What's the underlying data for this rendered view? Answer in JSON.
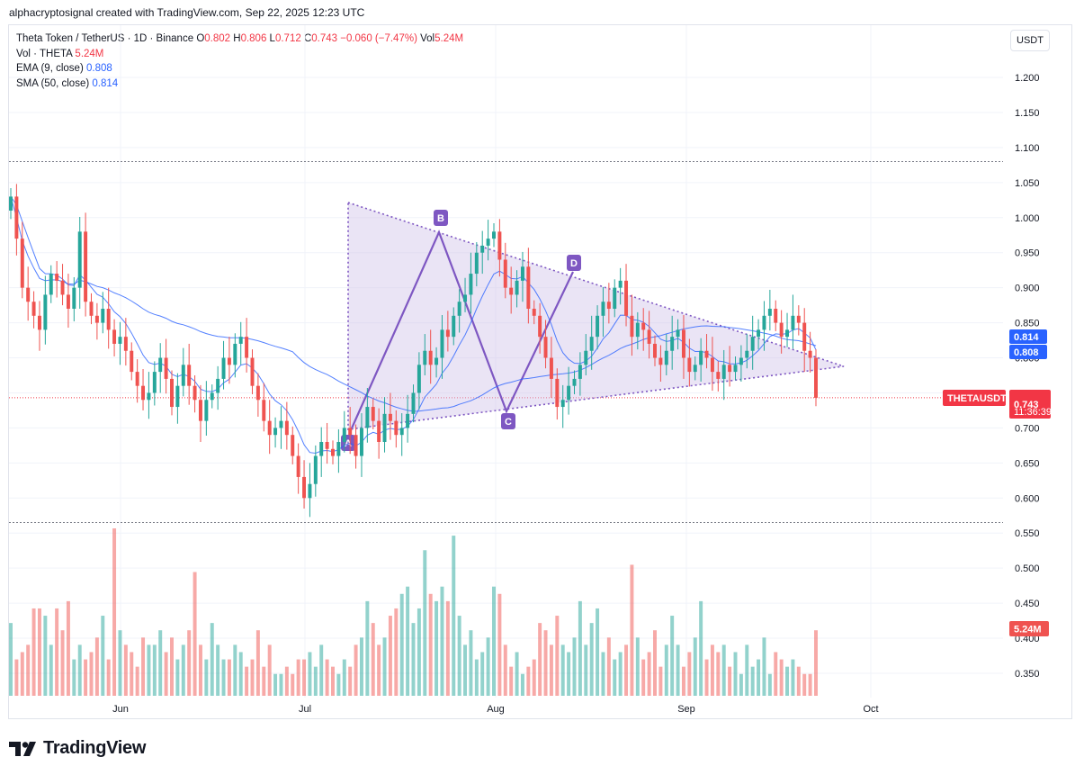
{
  "caption": "alphacryptosignal created with TradingView.com, Sep 22, 2025 12:23 UTC",
  "legend": {
    "symbol": "Theta Token / TetherUS · 1D · Binance",
    "o_label": "O",
    "o": "0.802",
    "h_label": "H",
    "h": "0.806",
    "l_label": "L",
    "l": "0.712",
    "c_label": "C",
    "c": "0.743",
    "change": "−0.060 (−7.47%)",
    "vol_label": "Vol",
    "vol": "5.24M",
    "vol_row_label": "Vol · THETA",
    "vol_row_value": "5.24M",
    "ema_label": "EMA (9, close)",
    "ema_value": "0.808",
    "sma_label": "SMA (50, close)",
    "sma_value": "0.814"
  },
  "currency": "USDT",
  "price_axis": [
    "1.200",
    "1.150",
    "1.100",
    "1.050",
    "1.000",
    "0.950",
    "0.900",
    "0.850",
    "0.800",
    "0.750",
    "0.700",
    "0.650",
    "0.600",
    "0.550",
    "0.500",
    "0.450",
    "0.400",
    "0.350"
  ],
  "time_axis": [
    "Jun",
    "Jul",
    "Aug",
    "Sep",
    "Oct"
  ],
  "badges": {
    "sma": "0.814",
    "ema": "0.808",
    "symbol_tag": "THETAUSDT",
    "last_price": "0.743",
    "countdown": "11:36:39",
    "volume": "5.24M"
  },
  "pattern_labels": [
    "A",
    "B",
    "C",
    "D"
  ],
  "logo_text": "TradingView",
  "colors": {
    "up": "#26a69a",
    "down": "#ef5350",
    "ema": "#2962ff",
    "sma": "#2962ff",
    "pattern": "#7e57c2",
    "fill": "#d1c4e9"
  },
  "chart_data": {
    "type": "candlestick",
    "title": "Theta Token / TetherUS · 1D · Binance",
    "y_range": [
      0.3,
      1.235
    ],
    "x_labels": [
      "Jun",
      "Jul",
      "Aug",
      "Sep",
      "Oct"
    ],
    "last_close": 0.743,
    "recent_high_line": 1.08,
    "recent_low_line": 0.565,
    "price_series_approx": [
      1.03,
      0.97,
      0.9,
      0.88,
      0.86,
      0.84,
      0.89,
      0.92,
      0.91,
      0.89,
      0.87,
      0.9,
      0.98,
      0.88,
      0.86,
      0.85,
      0.87,
      0.84,
      0.82,
      0.83,
      0.81,
      0.78,
      0.76,
      0.74,
      0.75,
      0.78,
      0.8,
      0.77,
      0.73,
      0.76,
      0.79,
      0.76,
      0.74,
      0.71,
      0.74,
      0.75,
      0.77,
      0.8,
      0.79,
      0.82,
      0.83,
      0.8,
      0.76,
      0.74,
      0.71,
      0.69,
      0.7,
      0.71,
      0.69,
      0.66,
      0.63,
      0.6,
      0.62,
      0.66,
      0.68,
      0.67,
      0.66,
      0.68,
      0.7,
      0.69,
      0.66,
      0.7,
      0.73,
      0.71,
      0.68,
      0.72,
      0.71,
      0.69,
      0.7,
      0.72,
      0.75,
      0.79,
      0.81,
      0.79,
      0.8,
      0.84,
      0.83,
      0.86,
      0.88,
      0.89,
      0.92,
      0.95,
      0.96,
      0.97,
      0.98,
      0.94,
      0.9,
      0.89,
      0.91,
      0.93,
      0.87,
      0.86,
      0.83,
      0.8,
      0.77,
      0.73,
      0.74,
      0.76,
      0.77,
      0.79,
      0.81,
      0.83,
      0.86,
      0.88,
      0.87,
      0.9,
      0.91,
      0.86,
      0.83,
      0.85,
      0.84,
      0.82,
      0.8,
      0.79,
      0.81,
      0.83,
      0.84,
      0.8,
      0.78,
      0.79,
      0.81,
      0.8,
      0.78,
      0.77,
      0.79,
      0.78,
      0.79,
      0.8,
      0.81,
      0.83,
      0.84,
      0.86,
      0.87,
      0.85,
      0.83,
      0.84,
      0.86,
      0.85,
      0.81,
      0.8,
      0.743
    ],
    "volume_series_approx": [
      0.43,
      0.38,
      0.39,
      0.4,
      0.45,
      0.45,
      0.44,
      0.4,
      0.45,
      0.42,
      0.46,
      0.38,
      0.4,
      0.38,
      0.39,
      0.41,
      0.44,
      0.38,
      0.56,
      0.42,
      0.4,
      0.39,
      0.37,
      0.41,
      0.4,
      0.4,
      0.42,
      0.39,
      0.41,
      0.38,
      0.4,
      0.42,
      0.5,
      0.4,
      0.38,
      0.43,
      0.4,
      0.38,
      0.38,
      0.4,
      0.39,
      0.37,
      0.38,
      0.42,
      0.37,
      0.4,
      0.36,
      0.36,
      0.37,
      0.36,
      0.38,
      0.38,
      0.39,
      0.37,
      0.4,
      0.38,
      0.37,
      0.36,
      0.38,
      0.37,
      0.4,
      0.41,
      0.46,
      0.43,
      0.4,
      0.41,
      0.44,
      0.45,
      0.47,
      0.48,
      0.43,
      0.45,
      0.53,
      0.47,
      0.46,
      0.48,
      0.46,
      0.55,
      0.44,
      0.4,
      0.42,
      0.38,
      0.39,
      0.41,
      0.48,
      0.47,
      0.4,
      0.37,
      0.39,
      0.36,
      0.37,
      0.38,
      0.43,
      0.42,
      0.4,
      0.44,
      0.4,
      0.39,
      0.41,
      0.46,
      0.4,
      0.43,
      0.45,
      0.39,
      0.41,
      0.38,
      0.39,
      0.4,
      0.51,
      0.41,
      0.38,
      0.39,
      0.42,
      0.37,
      0.4,
      0.44,
      0.4,
      0.37,
      0.39,
      0.41,
      0.46,
      0.38,
      0.4,
      0.39,
      0.4,
      0.37,
      0.39,
      0.36,
      0.4,
      0.37,
      0.38,
      0.41,
      0.36,
      0.39,
      0.38,
      0.37,
      0.38,
      0.37,
      0.36,
      0.36,
      0.42
    ]
  }
}
